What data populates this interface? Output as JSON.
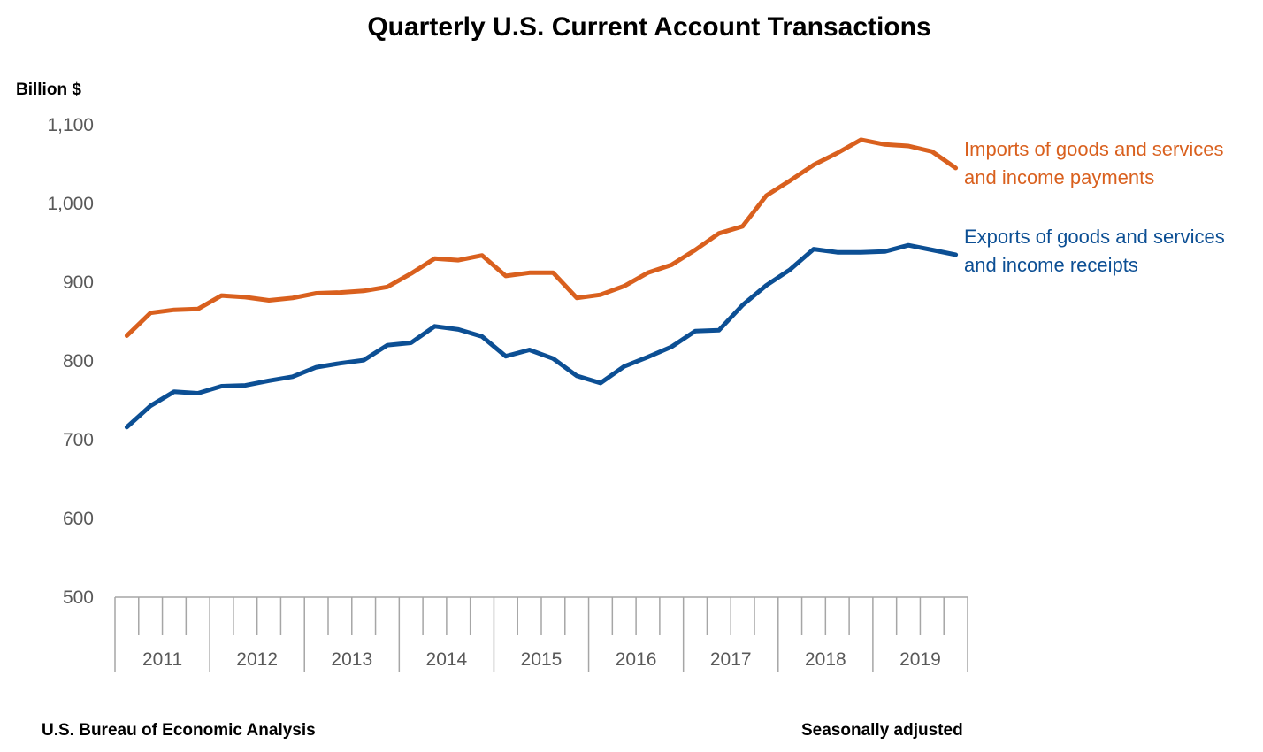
{
  "chart_data": {
    "type": "line",
    "title": "Quarterly U.S. Current Account Transactions",
    "ylabel": "Billion $",
    "ylim": [
      500,
      1100
    ],
    "yticks": [
      500,
      600,
      700,
      800,
      900,
      1000,
      1100
    ],
    "ytick_labels": [
      "500",
      "600",
      "700",
      "800",
      "900",
      "1,000",
      "1,100"
    ],
    "years": [
      "2011",
      "2012",
      "2013",
      "2014",
      "2015",
      "2016",
      "2017",
      "2018",
      "2019"
    ],
    "quarters_per_year": 4,
    "grid": false,
    "series": [
      {
        "name": "Imports of goods and services and income payments",
        "label_lines": [
          "Imports of goods and services",
          "and income payments"
        ],
        "color": "#D9601E",
        "values": [
          832,
          861,
          865,
          866,
          883,
          881,
          877,
          880,
          886,
          887,
          889,
          894,
          911,
          930,
          928,
          934,
          908,
          912,
          912,
          880,
          884,
          895,
          912,
          922,
          941,
          962,
          971,
          1010,
          1029,
          1049,
          1064,
          1081,
          1075,
          1073,
          1066,
          1045
        ]
      },
      {
        "name": "Exports of goods and services and income receipts",
        "label_lines": [
          "Exports of goods and services",
          "and income receipts"
        ],
        "color": "#0C4F94",
        "values": [
          716,
          743,
          761,
          759,
          768,
          769,
          775,
          780,
          792,
          797,
          801,
          820,
          823,
          844,
          840,
          831,
          806,
          814,
          803,
          781,
          772,
          793,
          805,
          818,
          838,
          839,
          871,
          896,
          916,
          942,
          938,
          938,
          939,
          947,
          941,
          935
        ]
      }
    ]
  },
  "footer": {
    "source": "U.S. Bureau of Economic Analysis",
    "note": "Seasonally adjusted"
  }
}
